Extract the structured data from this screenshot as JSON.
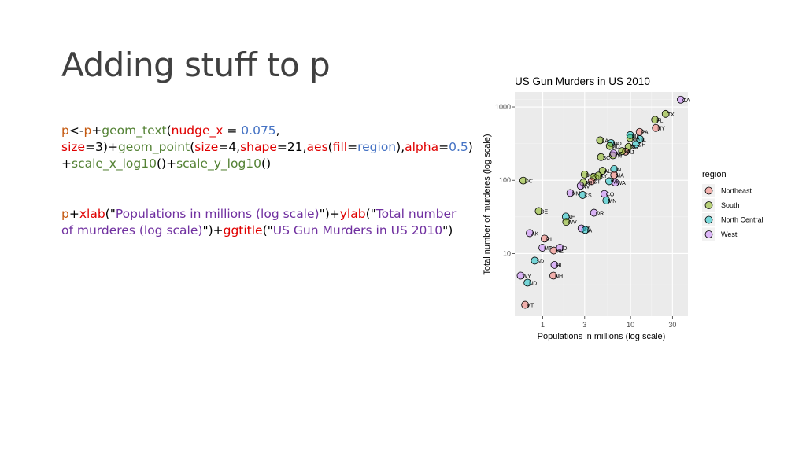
{
  "slide": {
    "title": "Adding stuff to p"
  },
  "code_block_1": {
    "tokens": [
      {
        "text": "p",
        "color": "#c55a11"
      },
      {
        "text": "<-",
        "color": "#000000"
      },
      {
        "text": "p",
        "color": "#c55a11"
      },
      {
        "text": "+",
        "color": "#000000"
      },
      {
        "text": "geom_text",
        "color": "#548235"
      },
      {
        "text": "(",
        "color": "#000000"
      },
      {
        "text": "nudge_x",
        "color": "#e00000"
      },
      {
        "text": " = ",
        "color": "#000000"
      },
      {
        "text": "0.075",
        "color": "#4472c4"
      },
      {
        "text": ",",
        "color": "#000000"
      },
      {
        "text": "\n",
        "color": "#000000"
      },
      {
        "text": "size",
        "color": "#e00000"
      },
      {
        "text": "=3)+",
        "color": "#000000"
      },
      {
        "text": "geom_point",
        "color": "#548235"
      },
      {
        "text": "(",
        "color": "#000000"
      },
      {
        "text": "size",
        "color": "#e00000"
      },
      {
        "text": "=4,",
        "color": "#000000"
      },
      {
        "text": "shape",
        "color": "#e00000"
      },
      {
        "text": "=21,",
        "color": "#000000"
      },
      {
        "text": "aes",
        "color": "#e00000"
      },
      {
        "text": "(",
        "color": "#000000"
      },
      {
        "text": "fill",
        "color": "#e00000"
      },
      {
        "text": "=",
        "color": "#000000"
      },
      {
        "text": "region",
        "color": "#4472c4"
      },
      {
        "text": "),",
        "color": "#000000"
      },
      {
        "text": "alpha",
        "color": "#e00000"
      },
      {
        "text": "=",
        "color": "#000000"
      },
      {
        "text": "0.5",
        "color": "#4472c4"
      },
      {
        "text": ")",
        "color": "#000000"
      },
      {
        "text": "\n",
        "color": "#000000"
      },
      {
        "text": "+",
        "color": "#000000"
      },
      {
        "text": "scale_x_log10",
        "color": "#548235"
      },
      {
        "text": "()+",
        "color": "#000000"
      },
      {
        "text": "scale_y_log10",
        "color": "#548235"
      },
      {
        "text": "()",
        "color": "#000000"
      }
    ]
  },
  "code_block_2": {
    "tokens": [
      {
        "text": "p",
        "color": "#c55a11"
      },
      {
        "text": "+",
        "color": "#000000"
      },
      {
        "text": "xlab",
        "color": "#e00000"
      },
      {
        "text": "(\"",
        "color": "#000000"
      },
      {
        "text": "Populations in millions (log scale)",
        "color": "#7030a0"
      },
      {
        "text": "\")+",
        "color": "#000000"
      },
      {
        "text": "ylab",
        "color": "#e00000"
      },
      {
        "text": "(\"",
        "color": "#000000"
      },
      {
        "text": "Total number",
        "color": "#7030a0"
      },
      {
        "text": "\n",
        "color": "#000000"
      },
      {
        "text": "of murderes (log scale)",
        "color": "#7030a0"
      },
      {
        "text": "\")+",
        "color": "#000000"
      },
      {
        "text": "ggtitle",
        "color": "#e00000"
      },
      {
        "text": "(\"",
        "color": "#000000"
      },
      {
        "text": "US Gun Murders in US 2010",
        "color": "#7030a0"
      },
      {
        "text": "\")",
        "color": "#000000"
      }
    ]
  },
  "chart_data": {
    "type": "scatter",
    "title": "US Gun Murders in US 2010",
    "xlabel": "Populations in millions (log scale)",
    "ylabel": "Total number of murderes (log scale)",
    "x_scale": "log10",
    "y_scale": "log10",
    "xlim": [
      0.48,
      45
    ],
    "ylim": [
      1.4,
      1600
    ],
    "x_ticks": [
      1,
      3,
      10,
      30
    ],
    "x_tick_labels": [
      "1",
      "3",
      "10",
      "30"
    ],
    "y_ticks": [
      10,
      100,
      1000
    ],
    "y_tick_labels": [
      "10",
      "100",
      "1000"
    ],
    "grid": true,
    "legend": {
      "title": "region",
      "placement": "right",
      "entries": [
        "Northeast",
        "South",
        "North Central",
        "West"
      ]
    },
    "colors": {
      "Northeast": "#F8766D",
      "South": "#7CAE00",
      "North Central": "#00BFC4",
      "West": "#C77CFF"
    },
    "points": [
      {
        "label": "CA",
        "x": 37.3,
        "y": 1257,
        "region": "West"
      },
      {
        "label": "TX",
        "x": 25.1,
        "y": 805,
        "region": "South"
      },
      {
        "label": "FL",
        "x": 19.0,
        "y": 669,
        "region": "South"
      },
      {
        "label": "NY",
        "x": 19.4,
        "y": 517,
        "region": "Northeast"
      },
      {
        "label": "PA",
        "x": 12.7,
        "y": 457,
        "region": "Northeast"
      },
      {
        "label": "IL",
        "x": 12.8,
        "y": 364,
        "region": "North Central"
      },
      {
        "label": "GA",
        "x": 9.9,
        "y": 376,
        "region": "South"
      },
      {
        "label": "MI",
        "x": 9.9,
        "y": 413,
        "region": "North Central"
      },
      {
        "label": "OH",
        "x": 11.5,
        "y": 310,
        "region": "North Central"
      },
      {
        "label": "LA",
        "x": 4.5,
        "y": 351,
        "region": "South"
      },
      {
        "label": "MO",
        "x": 6.0,
        "y": 321,
        "region": "North Central"
      },
      {
        "label": "NC",
        "x": 9.5,
        "y": 286,
        "region": "South"
      },
      {
        "label": "TN",
        "x": 6.3,
        "y": 219,
        "region": "South"
      },
      {
        "label": "NJ",
        "x": 8.8,
        "y": 246,
        "region": "Northeast"
      },
      {
        "label": "AL",
        "x": 4.8,
        "y": 135,
        "region": "South"
      },
      {
        "label": "SC",
        "x": 4.6,
        "y": 207,
        "region": "South"
      },
      {
        "label": "VA",
        "x": 8.0,
        "y": 250,
        "region": "South"
      },
      {
        "label": "MD",
        "x": 5.8,
        "y": 293,
        "region": "South"
      },
      {
        "label": "IN",
        "x": 6.5,
        "y": 142,
        "region": "North Central"
      },
      {
        "label": "AZ",
        "x": 6.4,
        "y": 232,
        "region": "West"
      },
      {
        "label": "MA",
        "x": 6.5,
        "y": 118,
        "region": "Northeast"
      },
      {
        "label": "WA",
        "x": 6.7,
        "y": 93,
        "region": "West"
      },
      {
        "label": "WI",
        "x": 5.7,
        "y": 97,
        "region": "North Central"
      },
      {
        "label": "MS",
        "x": 3.0,
        "y": 120,
        "region": "South"
      },
      {
        "label": "OK",
        "x": 3.8,
        "y": 111,
        "region": "South"
      },
      {
        "label": "KY",
        "x": 4.3,
        "y": 116,
        "region": "South"
      },
      {
        "label": "CT",
        "x": 3.6,
        "y": 97,
        "region": "Northeast"
      },
      {
        "label": "AR",
        "x": 2.9,
        "y": 93,
        "region": "South"
      },
      {
        "label": "NV",
        "x": 2.7,
        "y": 84,
        "region": "West"
      },
      {
        "label": "DC",
        "x": 0.6,
        "y": 99,
        "region": "South"
      },
      {
        "label": "NM",
        "x": 2.06,
        "y": 67,
        "region": "West"
      },
      {
        "label": "CO",
        "x": 5.03,
        "y": 65,
        "region": "West"
      },
      {
        "label": "KS",
        "x": 2.85,
        "y": 63,
        "region": "North Central"
      },
      {
        "label": "MN",
        "x": 5.3,
        "y": 53,
        "region": "North Central"
      },
      {
        "label": "OR",
        "x": 3.83,
        "y": 36,
        "region": "West"
      },
      {
        "label": "DE",
        "x": 0.9,
        "y": 38,
        "region": "South"
      },
      {
        "label": "NE",
        "x": 1.83,
        "y": 32,
        "region": "North Central"
      },
      {
        "label": "WV",
        "x": 1.85,
        "y": 27,
        "region": "South"
      },
      {
        "label": "UT",
        "x": 2.76,
        "y": 22,
        "region": "West"
      },
      {
        "label": "IA",
        "x": 3.05,
        "y": 21,
        "region": "North Central"
      },
      {
        "label": "AK",
        "x": 0.71,
        "y": 19,
        "region": "West"
      },
      {
        "label": "RI",
        "x": 1.05,
        "y": 16,
        "region": "Northeast"
      },
      {
        "label": "MT",
        "x": 0.99,
        "y": 12,
        "region": "West"
      },
      {
        "label": "ID",
        "x": 1.57,
        "y": 12,
        "region": "West"
      },
      {
        "label": "ME",
        "x": 1.33,
        "y": 11,
        "region": "Northeast"
      },
      {
        "label": "SD",
        "x": 0.81,
        "y": 8,
        "region": "North Central"
      },
      {
        "label": "HI",
        "x": 1.36,
        "y": 7,
        "region": "West"
      },
      {
        "label": "NH",
        "x": 1.32,
        "y": 5,
        "region": "Northeast"
      },
      {
        "label": "WY",
        "x": 0.56,
        "y": 5,
        "region": "West"
      },
      {
        "label": "ND",
        "x": 0.67,
        "y": 4,
        "region": "North Central"
      },
      {
        "label": "VT",
        "x": 0.63,
        "y": 2,
        "region": "Northeast"
      }
    ]
  }
}
